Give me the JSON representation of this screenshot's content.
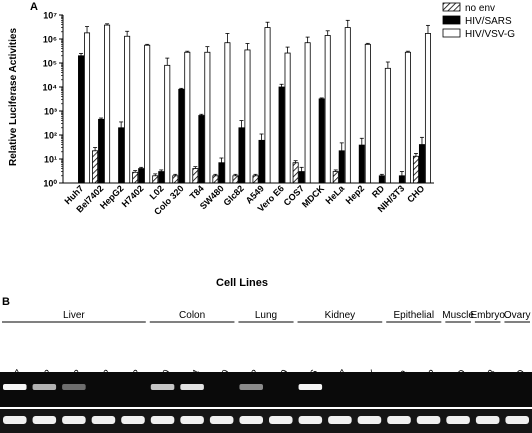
{
  "panel_a_label": "A",
  "panel_b_label": "B",
  "chart_data": {
    "type": "bar",
    "yscale": "log",
    "ylim_exponents": [
      0,
      7
    ],
    "ytick_labels": [
      "10⁰",
      "10¹",
      "10²",
      "10³",
      "10⁴",
      "10⁵",
      "10⁶",
      "10⁷"
    ],
    "ylabel": "Relative Luciferase Activities",
    "xlabel": "Cell Lines",
    "legend_position": "top-right",
    "categories": [
      "Huh7",
      "Bel7402",
      "HepG2",
      "H7402",
      "L02",
      "Colo 320",
      "T84",
      "SW480",
      "Glc82",
      "A549",
      "Vero E6",
      "COS7",
      "MDCK",
      "HeLa",
      "Hep2",
      "RD",
      "NIH/3T3",
      "CHO"
    ],
    "series": [
      {
        "name": "no env",
        "style": "hatched",
        "values": [
          1,
          22,
          1,
          2.8,
          2,
          2,
          4,
          2,
          2,
          2,
          1,
          7,
          1,
          3,
          1,
          1,
          1,
          13
        ],
        "errors": [
          0,
          8,
          0,
          0.5,
          0.4,
          0.3,
          0.8,
          0.3,
          0.3,
          0.3,
          0,
          1.5,
          0,
          0.5,
          0,
          0,
          0,
          4
        ]
      },
      {
        "name": "HIV/SARS",
        "style": "black",
        "values": [
          200000,
          450,
          200,
          4,
          3,
          8000,
          650,
          7,
          200,
          60,
          10000,
          3,
          3200,
          22,
          38,
          2,
          2,
          40
        ],
        "errors": [
          50000,
          60,
          150,
          0.5,
          0.5,
          800,
          80,
          4,
          200,
          50,
          3000,
          1.5,
          300,
          25,
          35,
          0.3,
          1,
          40
        ]
      },
      {
        "name": "HIV/VSV-G",
        "style": "white",
        "values": [
          1800000,
          3800000,
          1300000,
          550000,
          80000,
          280000,
          280000,
          700000,
          350000,
          3000000,
          260000,
          700000,
          1400000,
          3000000,
          600000,
          60000,
          280000,
          1700000
        ],
        "errors": [
          1500000,
          500000,
          800000,
          50000,
          80000,
          30000,
          200000,
          1000000,
          300000,
          2000000,
          200000,
          500000,
          800000,
          3000000,
          60000,
          50000,
          30000,
          2000000
        ]
      }
    ]
  },
  "gel": {
    "groups": [
      {
        "name": "Liver",
        "count": 5
      },
      {
        "name": "Colon",
        "count": 3
      },
      {
        "name": "Lung",
        "count": 2
      },
      {
        "name": "Kidney",
        "count": 3
      },
      {
        "name": "Epithelial",
        "count": 2
      },
      {
        "name": "Muscle",
        "count": 1
      },
      {
        "name": "Embryo",
        "count": 1
      },
      {
        "name": "Ovary",
        "count": 1
      }
    ],
    "lanes": [
      "Huh7",
      "Bel7402",
      "HepG2",
      "H7402",
      "L02",
      "Colo 320",
      "T84",
      "Sw480",
      "Glc82",
      "A549",
      "Vero E6",
      "COS7",
      "MDCK",
      "HeLa",
      "Hep2",
      "RD",
      "NIH/3T3",
      "CHO"
    ],
    "top_band_intensity": [
      0.95,
      0.6,
      0.25,
      0,
      0,
      0.7,
      0.85,
      0,
      0.4,
      0,
      0.95,
      0,
      0,
      0,
      0,
      0,
      0,
      0
    ],
    "bottom_band_intensity": [
      1,
      1,
      1,
      1,
      1,
      1,
      1,
      1,
      1,
      1,
      1,
      1,
      1,
      1,
      1,
      1,
      1,
      1
    ]
  }
}
